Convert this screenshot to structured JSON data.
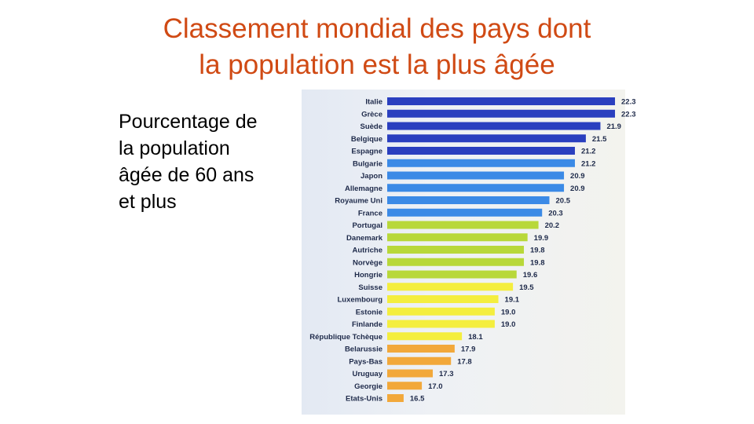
{
  "title": {
    "line1": "Classement mondial des pays dont",
    "line2": "la population est la plus âgée"
  },
  "subtitle": {
    "line1": "Pourcentage de",
    "line2": "la population",
    "line3": "âgée de 60 ans",
    "line4": "et plus"
  },
  "chart_data": {
    "type": "bar",
    "orientation": "horizontal",
    "categories": [
      "Italie",
      "Grèce",
      "Suède",
      "Belgique",
      "Espagne",
      "Bulgarie",
      "Japon",
      "Allemagne",
      "Royaume Uni",
      "France",
      "Portugal",
      "Danemark",
      "Autriche",
      "Norvège",
      "Hongrie",
      "Suisse",
      "Luxembourg",
      "Estonie",
      "Finlande",
      "République Tchèque",
      "Belarussie",
      "Pays-Bas",
      "Uruguay",
      "Georgie",
      "Etats-Unis"
    ],
    "values": [
      22.3,
      22.3,
      21.9,
      21.5,
      21.2,
      21.2,
      20.9,
      20.9,
      20.5,
      20.3,
      20.2,
      19.9,
      19.8,
      19.8,
      19.6,
      19.5,
      19.1,
      19.0,
      19.0,
      18.1,
      17.9,
      17.8,
      17.3,
      17.0,
      16.5
    ],
    "value_labels": [
      "22.3",
      "22.3",
      "21.9",
      "21.5",
      "21.2",
      "21.2",
      "20.9",
      "20.9",
      "20.5",
      "20.3",
      "20.2",
      "19.9",
      "19.8",
      "19.8",
      "19.6",
      "19.5",
      "19.1",
      "19.0",
      "19.0",
      "18.1",
      "17.9",
      "17.8",
      "17.3",
      "17.0",
      "16.5"
    ],
    "colors": [
      "#2a3fbf",
      "#2a3fbf",
      "#2a3fbf",
      "#2a3fbf",
      "#2a3fbf",
      "#3b8ae6",
      "#3b8ae6",
      "#3b8ae6",
      "#3b8ae6",
      "#3b8ae6",
      "#b8d83a",
      "#b8d83a",
      "#b8d83a",
      "#b8d83a",
      "#b8d83a",
      "#f4ee3e",
      "#f4ee3e",
      "#f4ee3e",
      "#f4ee3e",
      "#f4ee3e",
      "#f2a83a",
      "#f2a83a",
      "#f2a83a",
      "#f2a83a",
      "#f2a83a"
    ],
    "grid": false,
    "legend": "none"
  }
}
